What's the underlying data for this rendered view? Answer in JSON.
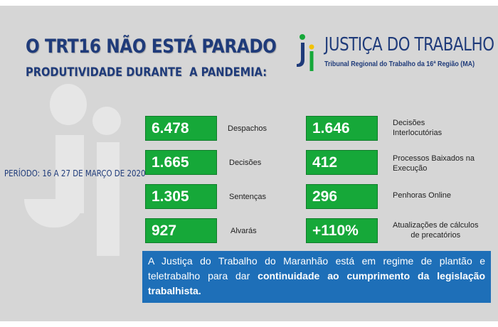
{
  "header": {
    "title": "O TRT16 NÃO ESTÁ PARADO",
    "subtitle": "PRODUTIVIDADE DURANTE  A PANDEMIA:"
  },
  "logo": {
    "name": "JUSTIÇA DO TRABALHO",
    "region": "Tribunal Regional do Trabalho da 16ª Região (MA)",
    "colors": {
      "blue": "#1f3b7a",
      "green": "#16a839",
      "yellow": "#f2c200"
    }
  },
  "period": "PERÍODO: 16 A 27 DE MARÇO DE 2020",
  "stats_left": [
    {
      "value": "6.478",
      "label": "Despachos"
    },
    {
      "value": "1.665",
      "label": "Decisões"
    },
    {
      "value": "1.305",
      "label": "Sentenças"
    },
    {
      "value": "927",
      "label": "Alvarás"
    }
  ],
  "stats_right": [
    {
      "value": "1.646",
      "label_line1": "Decisões",
      "label_line2": "Interlocutórias"
    },
    {
      "value": "412",
      "label_line1": "Processos Baixados na",
      "label_line2": "Execução"
    },
    {
      "value": "296",
      "label_line1": "Penhoras Online",
      "label_line2": ""
    },
    {
      "value": "+110%",
      "label_line1": "Atualizações de cálculos",
      "label_line2": "de precatórios"
    }
  ],
  "note": {
    "text_start": "A Justiça do Trabalho do Maranhão está em regime de plantão e teletrabalho para dar ",
    "text_bold": "continuidade ao cumprimento da legislação trabalhista."
  },
  "colors": {
    "background": "#d6d6d6",
    "title_blue": "#1f3b7a",
    "stat_green": "#16a839",
    "note_blue": "#1e6fb8"
  }
}
